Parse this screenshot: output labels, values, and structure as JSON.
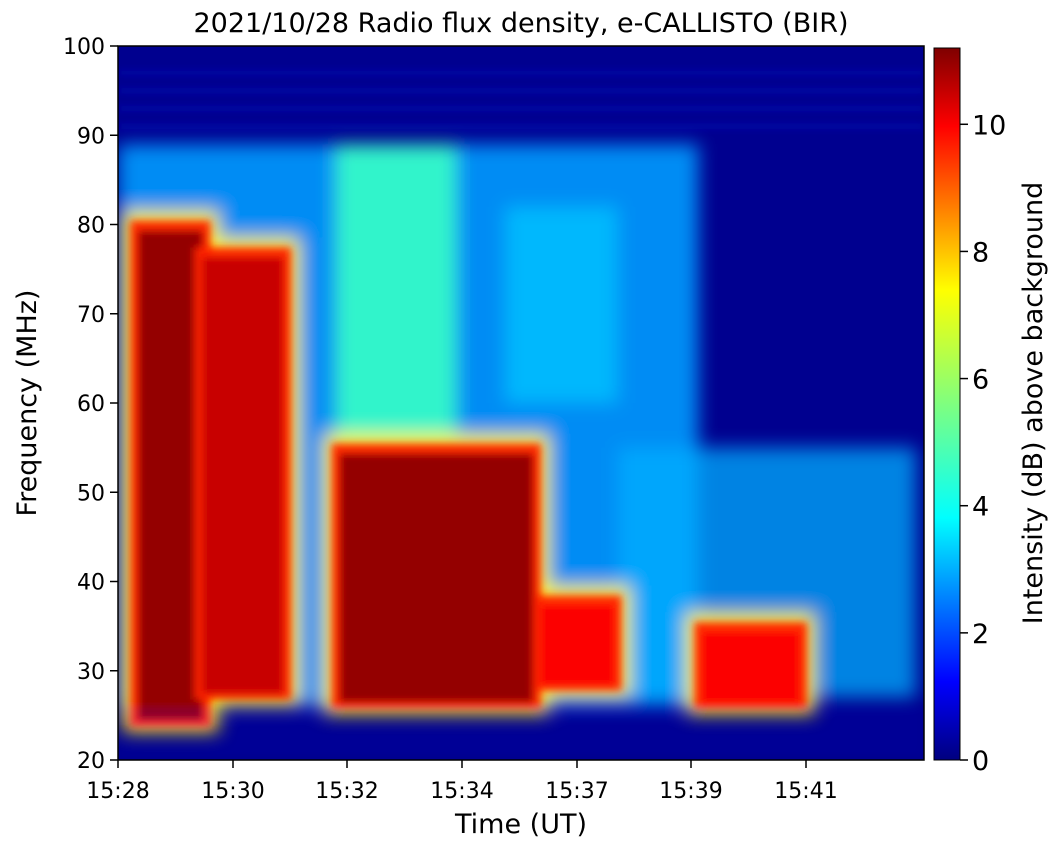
{
  "chart_data": {
    "type": "heatmap",
    "title": "2021/10/28  Radio flux density, e-CALLISTO (BIR)",
    "xlabel": "Time (UT)",
    "ylabel": "Frequency (MHz)",
    "colorbar_label": "Intensity (dB) above background",
    "colormap": "jet",
    "x_ticks": [
      "15:28",
      "15:30",
      "15:32",
      "15:34",
      "15:37",
      "15:39",
      "15:41"
    ],
    "y_ticks": [
      20,
      30,
      40,
      50,
      60,
      70,
      80,
      90,
      100
    ],
    "ylim": [
      20,
      100
    ],
    "colorbar_ticks": [
      0,
      2,
      4,
      6,
      8,
      10
    ],
    "colorbar_range": [
      0,
      11.2
    ],
    "bursts": [
      {
        "t_start": 0.02,
        "t_end": 0.11,
        "f_low": 24,
        "f_high": 80,
        "intensity": 11
      },
      {
        "t_start": 0.1,
        "t_end": 0.21,
        "f_low": 27,
        "f_high": 77,
        "intensity": 10.5
      },
      {
        "t_start": 0.27,
        "t_end": 0.52,
        "f_low": 26,
        "f_high": 55,
        "intensity": 11
      },
      {
        "t_start": 0.52,
        "t_end": 0.62,
        "f_low": 28,
        "f_high": 38,
        "intensity": 10
      },
      {
        "t_start": 0.72,
        "t_end": 0.85,
        "f_low": 26,
        "f_high": 35,
        "intensity": 10
      }
    ]
  }
}
